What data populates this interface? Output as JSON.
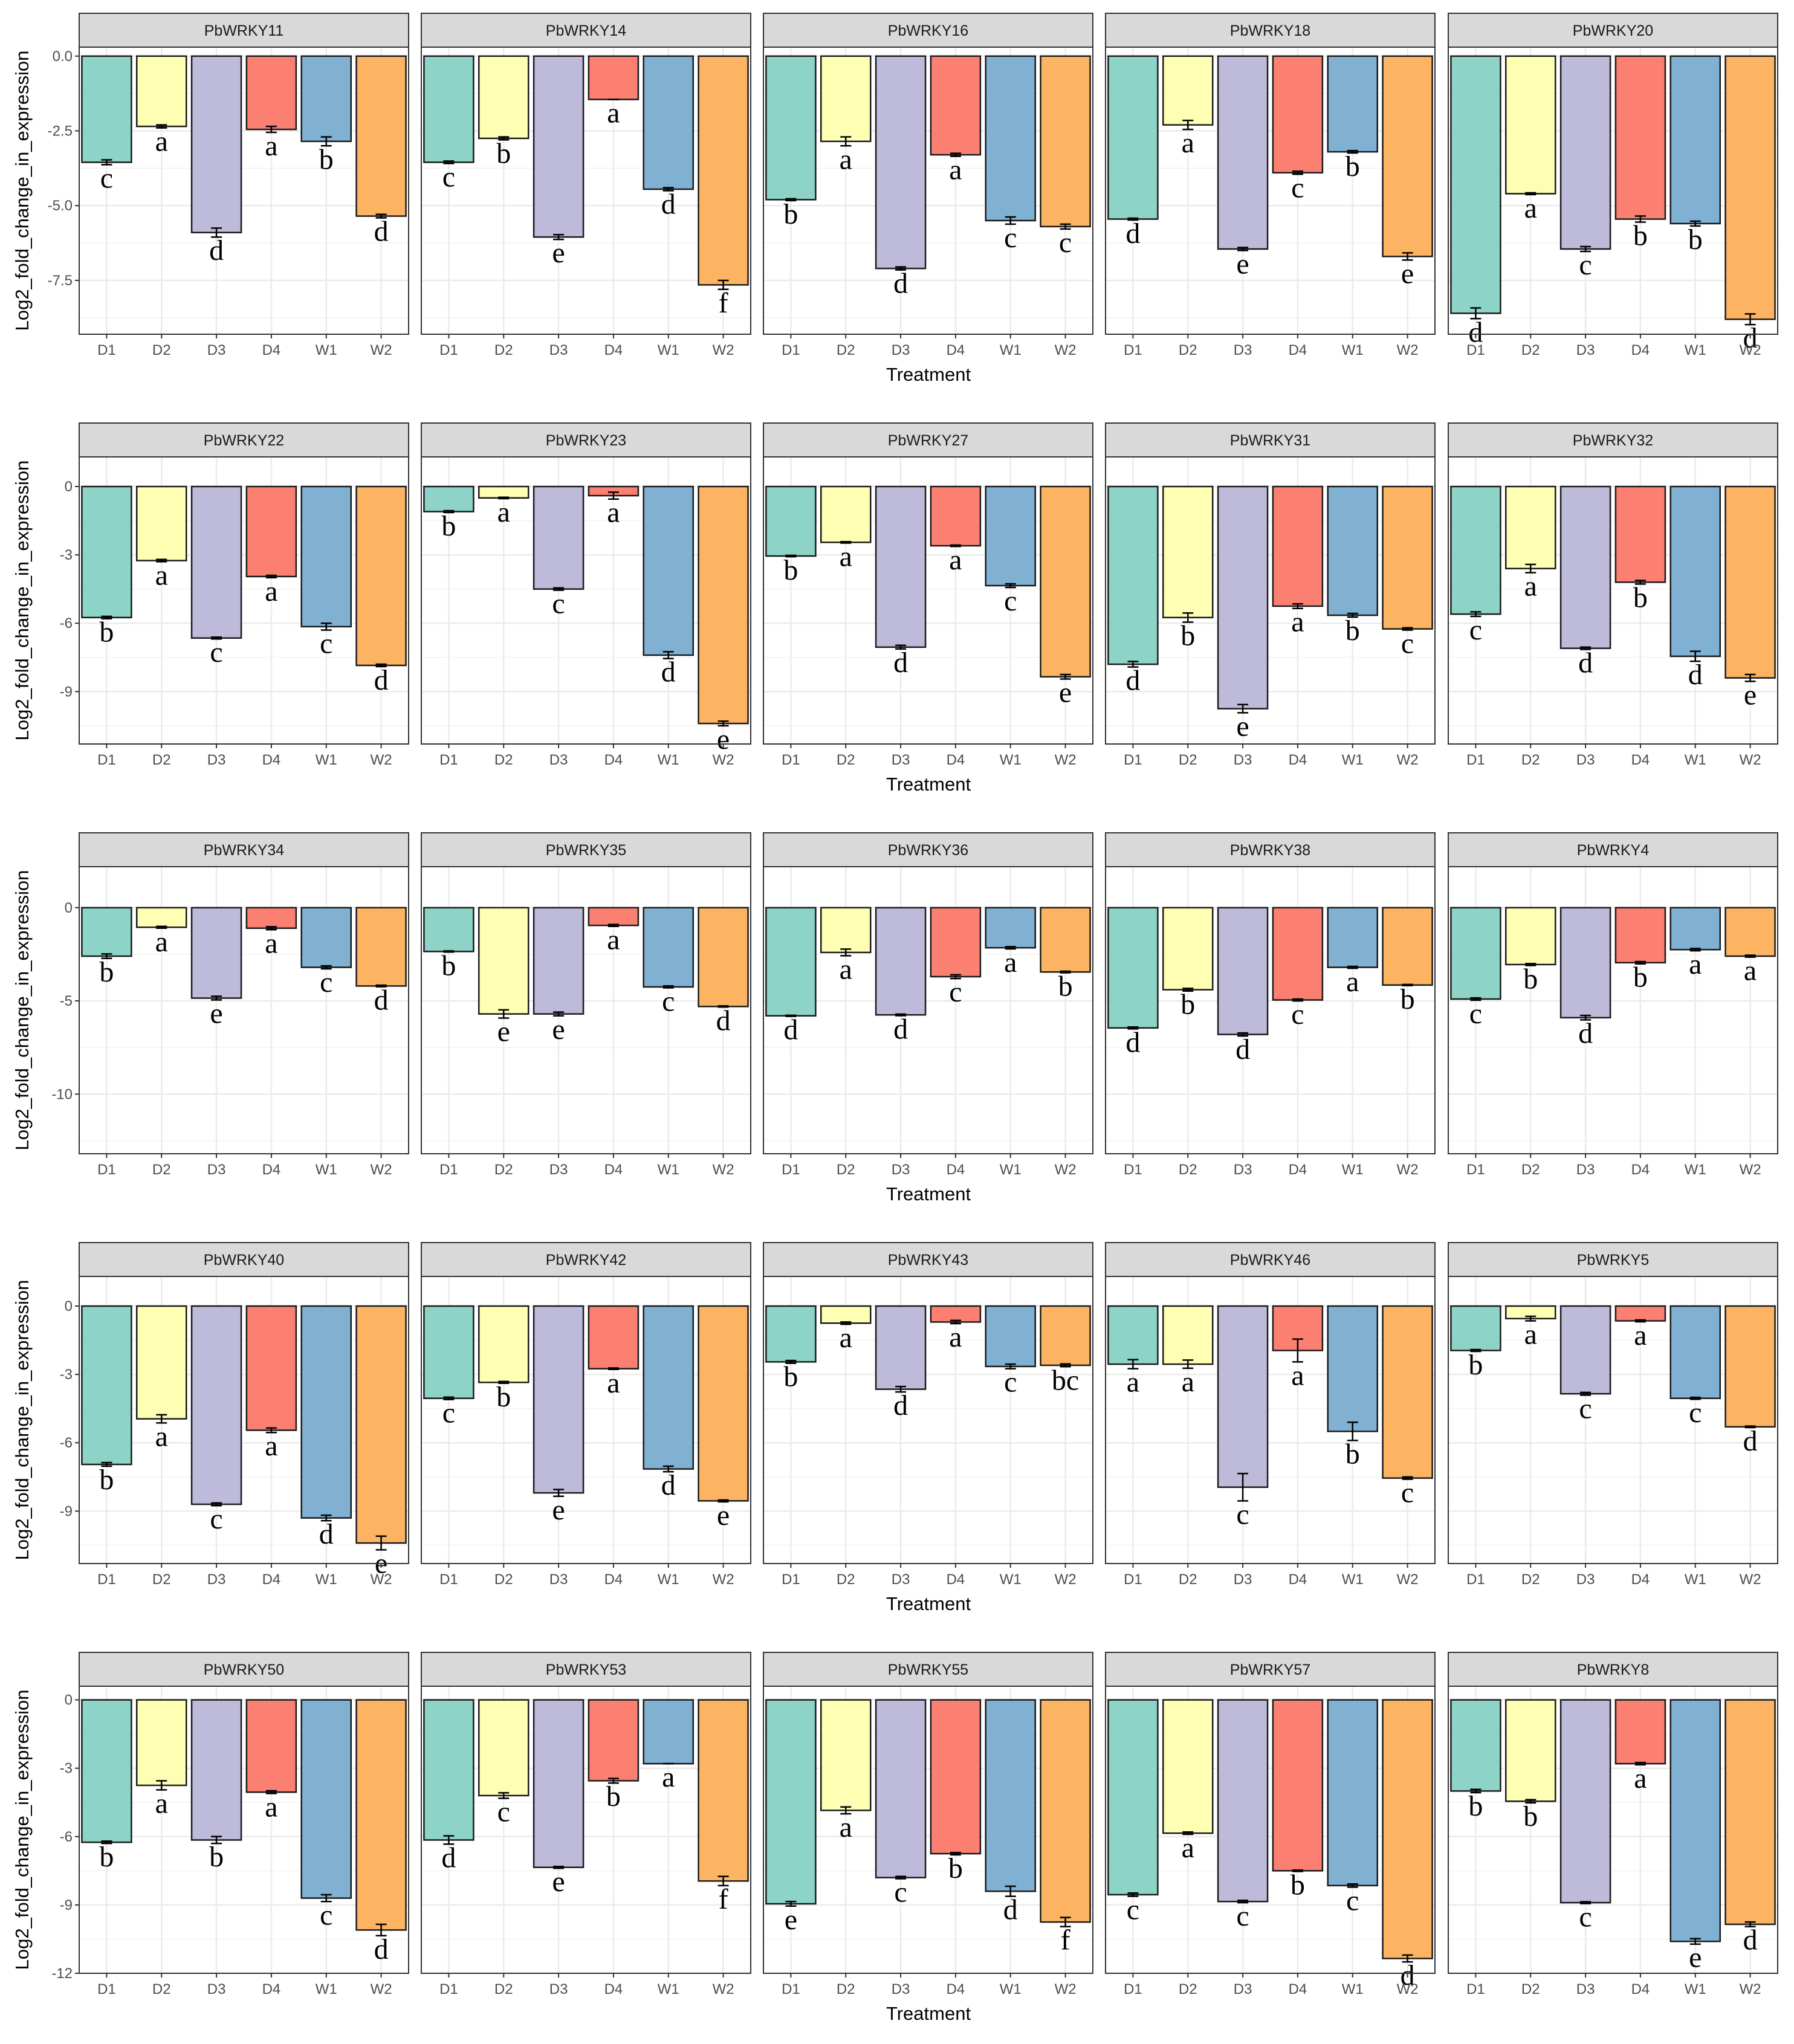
{
  "figure": {
    "ylabel": "Log2_fold_change_in_expression",
    "xlabel": "Treatment",
    "categories": [
      "D1",
      "D2",
      "D3",
      "D4",
      "W1",
      "W2"
    ],
    "colors": [
      "#8DD3C7",
      "#FFFFB3",
      "#BEBADA",
      "#FB8072",
      "#80B1D3",
      "#FDB462"
    ]
  },
  "chart_data": {
    "type": "bar",
    "title": "",
    "xlabel": "Treatment",
    "ylabel": "Log2_fold_change_in_expression",
    "categories": [
      "D1",
      "D2",
      "D3",
      "D4",
      "W1",
      "W2"
    ],
    "rows": [
      {
        "ylim": [
          -9.3,
          0.3
        ],
        "yticks": [
          0,
          -2.5,
          -5,
          -7.5
        ],
        "ytick_labels": [
          "0.0",
          "-2.5",
          "-5.0",
          "-7.5"
        ],
        "facets": [
          {
            "gene": "PbWRKY11",
            "values": [
              -3.55,
              -2.35,
              -5.9,
              -2.45,
              -2.85,
              -5.35
            ],
            "errors": [
              0.08,
              0.05,
              0.15,
              0.1,
              0.15,
              0.06
            ],
            "letters": [
              "c",
              "a",
              "d",
              "a",
              "b",
              "d"
            ]
          },
          {
            "gene": "PbWRKY14",
            "values": [
              -3.55,
              -2.75,
              -6.05,
              -1.45,
              -4.45,
              -7.65
            ],
            "errors": [
              0.04,
              0.05,
              0.08,
              0.0,
              0.05,
              0.15
            ],
            "letters": [
              "c",
              "b",
              "e",
              "a",
              "d",
              "f"
            ]
          },
          {
            "gene": "PbWRKY16",
            "values": [
              -4.8,
              -2.85,
              -7.1,
              -3.3,
              -5.5,
              -5.7
            ],
            "errors": [
              0.03,
              0.15,
              0.05,
              0.05,
              0.12,
              0.08
            ],
            "letters": [
              "b",
              "a",
              "d",
              "a",
              "c",
              "c"
            ]
          },
          {
            "gene": "PbWRKY18",
            "values": [
              -5.45,
              -2.3,
              -6.45,
              -3.9,
              -3.2,
              -6.7
            ],
            "errors": [
              0.03,
              0.15,
              0.05,
              0.05,
              0.04,
              0.12
            ],
            "letters": [
              "d",
              "a",
              "e",
              "c",
              "b",
              "e"
            ]
          },
          {
            "gene": "PbWRKY20",
            "values": [
              -8.6,
              -4.6,
              -6.45,
              -5.45,
              -5.6,
              -8.8
            ],
            "errors": [
              0.18,
              0.03,
              0.08,
              0.1,
              0.08,
              0.18
            ],
            "letters": [
              "d",
              "a",
              "c",
              "b",
              "b",
              "d"
            ]
          }
        ]
      },
      {
        "ylim": [
          -11.3,
          1.3
        ],
        "yticks": [
          0,
          -3,
          -6,
          -9
        ],
        "ytick_labels": [
          "0",
          "-3",
          "-6",
          "-9"
        ],
        "facets": [
          {
            "gene": "PbWRKY22",
            "values": [
              -5.75,
              -3.25,
              -6.65,
              -3.95,
              -6.15,
              -7.85
            ],
            "errors": [
              0.05,
              0.05,
              0.04,
              0.05,
              0.15,
              0.05
            ],
            "letters": [
              "b",
              "a",
              "c",
              "a",
              "c",
              "d"
            ]
          },
          {
            "gene": "PbWRKY23",
            "values": [
              -1.1,
              -0.5,
              -4.5,
              -0.4,
              -7.4,
              -10.4
            ],
            "errors": [
              0.04,
              0.03,
              0.05,
              0.15,
              0.15,
              0.1
            ],
            "letters": [
              "b",
              "a",
              "c",
              "a",
              "d",
              "e"
            ]
          },
          {
            "gene": "PbWRKY27",
            "values": [
              -3.05,
              -2.45,
              -7.05,
              -2.6,
              -4.35,
              -8.35
            ],
            "errors": [
              0.03,
              0.03,
              0.08,
              0.03,
              0.08,
              0.1
            ],
            "letters": [
              "b",
              "a",
              "d",
              "a",
              "c",
              "e"
            ]
          },
          {
            "gene": "PbWRKY31",
            "values": [
              -7.8,
              -5.75,
              -9.75,
              -5.25,
              -5.65,
              -6.25
            ],
            "errors": [
              0.12,
              0.2,
              0.18,
              0.1,
              0.08,
              0.05
            ],
            "letters": [
              "d",
              "b",
              "e",
              "a",
              "b",
              "c"
            ]
          },
          {
            "gene": "PbWRKY32",
            "values": [
              -5.6,
              -3.6,
              -7.1,
              -4.2,
              -7.45,
              -8.4
            ],
            "errors": [
              0.1,
              0.18,
              0.05,
              0.08,
              0.22,
              0.15
            ],
            "letters": [
              "c",
              "a",
              "d",
              "b",
              "d",
              "e"
            ]
          }
        ]
      },
      {
        "ylim": [
          -13.2,
          2.2
        ],
        "yticks": [
          0,
          -5,
          -10
        ],
        "ytick_labels": [
          "0",
          "-5",
          "-10"
        ],
        "facets": [
          {
            "gene": "PbWRKY34",
            "values": [
              -2.6,
              -1.05,
              -4.85,
              -1.1,
              -3.2,
              -4.2
            ],
            "errors": [
              0.12,
              0.05,
              0.1,
              0.08,
              0.08,
              0.04
            ],
            "letters": [
              "b",
              "a",
              "e",
              "a",
              "c",
              "d"
            ]
          },
          {
            "gene": "PbWRKY35",
            "values": [
              -2.35,
              -5.7,
              -5.7,
              -0.95,
              -4.25,
              -5.3
            ],
            "errors": [
              0.03,
              0.22,
              0.1,
              0.05,
              0.05,
              0.03
            ],
            "letters": [
              "b",
              "e",
              "e",
              "a",
              "c",
              "d"
            ]
          },
          {
            "gene": "PbWRKY36",
            "values": [
              -5.8,
              -2.4,
              -5.75,
              -3.7,
              -2.15,
              -3.45
            ],
            "errors": [
              0.03,
              0.18,
              0.04,
              0.1,
              0.06,
              0.04
            ],
            "letters": [
              "d",
              "a",
              "d",
              "c",
              "a",
              "b"
            ]
          },
          {
            "gene": "PbWRKY38",
            "values": [
              -6.45,
              -4.4,
              -6.8,
              -4.95,
              -3.2,
              -4.15
            ],
            "errors": [
              0.05,
              0.07,
              0.08,
              0.05,
              0.05,
              0.03
            ],
            "letters": [
              "d",
              "b",
              "d",
              "c",
              "a",
              "b"
            ]
          },
          {
            "gene": "PbWRKY4",
            "values": [
              -4.9,
              -3.05,
              -5.9,
              -2.95,
              -2.25,
              -2.6
            ],
            "errors": [
              0.06,
              0.05,
              0.12,
              0.06,
              0.06,
              0.05
            ],
            "letters": [
              "c",
              "b",
              "d",
              "b",
              "a",
              "a"
            ]
          }
        ]
      },
      {
        "ylim": [
          -11.3,
          1.3
        ],
        "yticks": [
          0,
          -3,
          -6,
          -9
        ],
        "ytick_labels": [
          "0",
          "-3",
          "-6",
          "-9"
        ],
        "facets": [
          {
            "gene": "PbWRKY40",
            "values": [
              -6.95,
              -4.95,
              -8.7,
              -5.45,
              -9.3,
              -10.4
            ],
            "errors": [
              0.08,
              0.18,
              0.06,
              0.1,
              0.12,
              0.3
            ],
            "letters": [
              "b",
              "a",
              "c",
              "a",
              "d",
              "e"
            ]
          },
          {
            "gene": "PbWRKY42",
            "values": [
              -4.05,
              -3.35,
              -8.2,
              -2.75,
              -7.15,
              -8.55
            ],
            "errors": [
              0.05,
              0.04,
              0.15,
              0.03,
              0.12,
              0.04
            ],
            "letters": [
              "c",
              "b",
              "e",
              "a",
              "d",
              "e"
            ]
          },
          {
            "gene": "PbWRKY43",
            "values": [
              -2.45,
              -0.75,
              -3.65,
              -0.7,
              -2.65,
              -2.6
            ],
            "errors": [
              0.06,
              0.05,
              0.12,
              0.07,
              0.1,
              0.06
            ],
            "letters": [
              "b",
              "a",
              "d",
              "a",
              "c",
              "bc"
            ]
          },
          {
            "gene": "PbWRKY46",
            "values": [
              -2.55,
              -2.55,
              -7.95,
              -1.95,
              -5.5,
              -7.55
            ],
            "errors": [
              0.2,
              0.18,
              0.6,
              0.5,
              0.4,
              0.05
            ],
            "letters": [
              "a",
              "a",
              "c",
              "a",
              "b",
              "c"
            ]
          },
          {
            "gene": "PbWRKY5",
            "values": [
              -1.95,
              -0.55,
              -3.85,
              -0.65,
              -4.05,
              -5.3
            ],
            "errors": [
              0.04,
              0.1,
              0.06,
              0.04,
              0.04,
              0.03
            ],
            "letters": [
              "b",
              "a",
              "c",
              "a",
              "c",
              "d"
            ]
          }
        ]
      },
      {
        "ylim": [
          -12,
          0.6
        ],
        "yticks": [
          0,
          -3,
          -6,
          -9,
          -12
        ],
        "ytick_labels": [
          "0",
          "-3",
          "-6",
          "-9",
          "-12"
        ],
        "facets": [
          {
            "gene": "PbWRKY50",
            "values": [
              -6.25,
              -3.75,
              -6.15,
              -4.05,
              -8.7,
              -10.1
            ],
            "errors": [
              0.05,
              0.2,
              0.15,
              0.06,
              0.15,
              0.25
            ],
            "letters": [
              "b",
              "a",
              "b",
              "a",
              "c",
              "d"
            ]
          },
          {
            "gene": "PbWRKY53",
            "values": [
              -6.15,
              -4.2,
              -7.35,
              -3.55,
              -2.8,
              -7.95
            ],
            "errors": [
              0.18,
              0.12,
              0.04,
              0.1,
              0.0,
              0.2
            ],
            "letters": [
              "d",
              "c",
              "e",
              "b",
              "a",
              "f"
            ]
          },
          {
            "gene": "PbWRKY55",
            "values": [
              -8.95,
              -4.85,
              -7.8,
              -6.75,
              -8.4,
              -9.75
            ],
            "errors": [
              0.1,
              0.15,
              0.05,
              0.05,
              0.22,
              0.2
            ],
            "letters": [
              "e",
              "a",
              "c",
              "b",
              "d",
              "f"
            ]
          },
          {
            "gene": "PbWRKY57",
            "values": [
              -8.55,
              -5.85,
              -8.85,
              -7.5,
              -8.15,
              -11.35
            ],
            "errors": [
              0.07,
              0.05,
              0.05,
              0.03,
              0.07,
              0.15
            ],
            "letters": [
              "c",
              "a",
              "c",
              "b",
              "c",
              "d"
            ]
          },
          {
            "gene": "PbWRKY8",
            "values": [
              -4.0,
              -4.45,
              -8.9,
              -2.8,
              -10.6,
              -9.85
            ],
            "errors": [
              0.07,
              0.07,
              0.04,
              0.05,
              0.12,
              0.1
            ],
            "letters": [
              "b",
              "b",
              "c",
              "a",
              "e",
              "d"
            ]
          }
        ]
      }
    ]
  }
}
